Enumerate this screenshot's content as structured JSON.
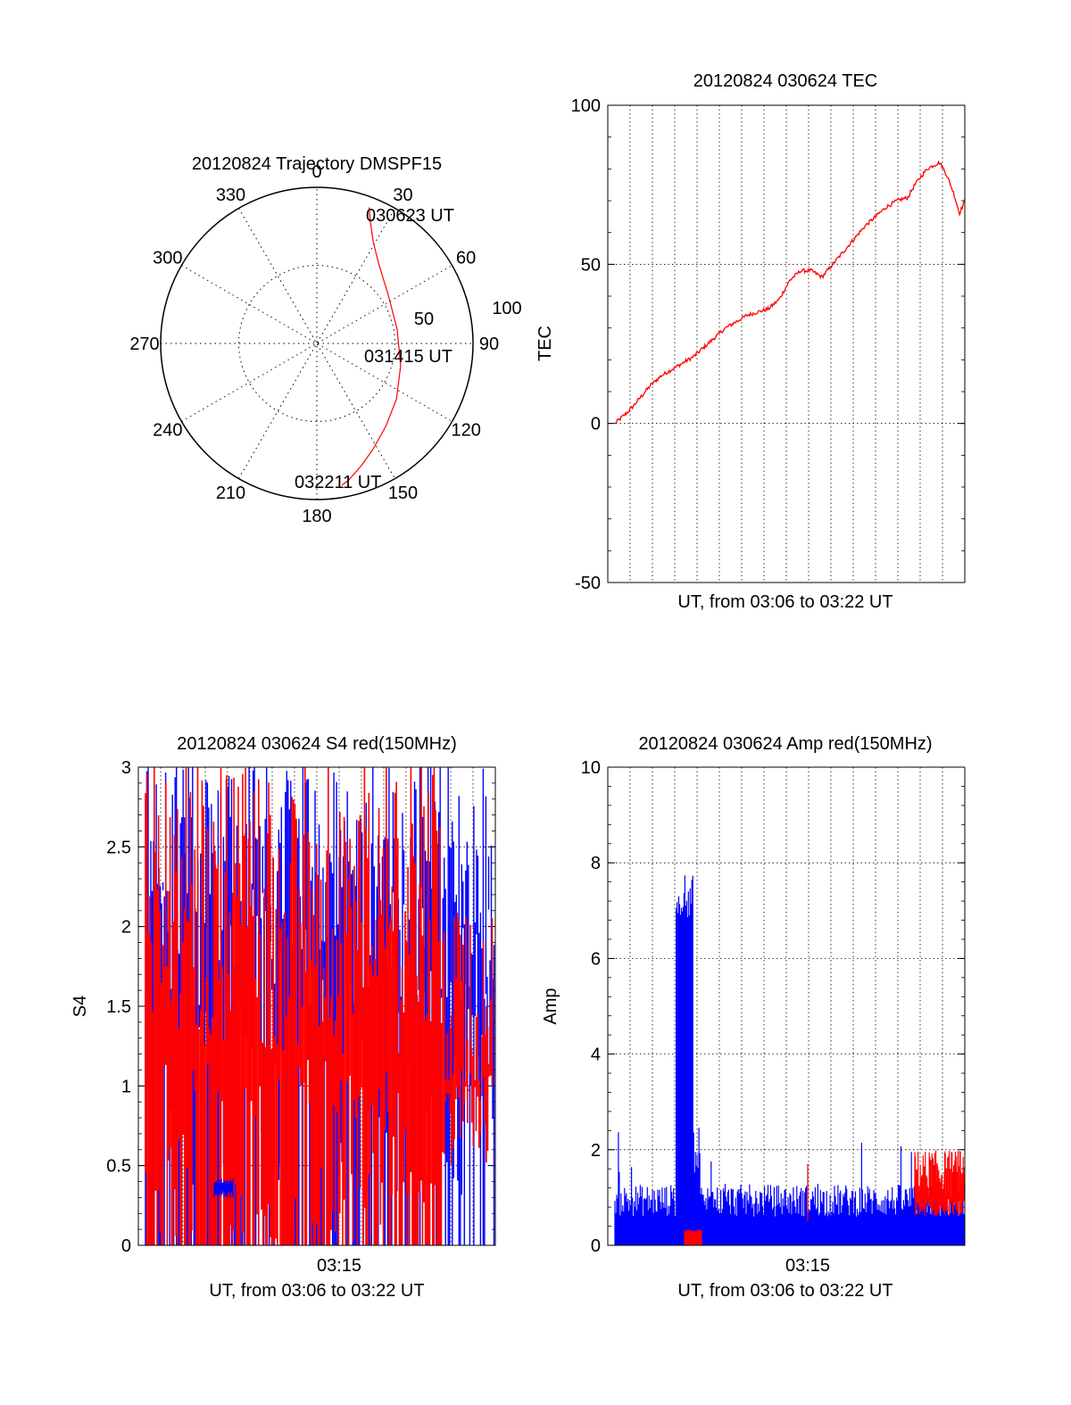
{
  "colors": {
    "red": "#ff0000",
    "blue": "#0000ff",
    "black": "#000000"
  },
  "chart_data": [
    {
      "type": "polar",
      "title": "20120824 Trajectory DMSPF15",
      "azimuth_labels": [
        "0",
        "30",
        "60",
        "90",
        "120",
        "150",
        "180",
        "210",
        "240",
        "270",
        "300",
        "330"
      ],
      "radial_labels": [
        "50",
        "100"
      ],
      "grid": true,
      "point_labels": [
        "030623 UT",
        "031415 UT",
        "032211 UT"
      ],
      "series": [
        {
          "color": "red",
          "points": [
            {
              "az": 21,
              "el": 6
            },
            {
              "az": 24,
              "el": 14
            },
            {
              "az": 29,
              "el": 23
            },
            {
              "az": 38,
              "el": 32
            },
            {
              "az": 55,
              "el": 40
            },
            {
              "az": 80,
              "el": 43
            },
            {
              "az": 105,
              "el": 40
            },
            {
              "az": 125,
              "el": 34
            },
            {
              "az": 140,
              "el": 28
            },
            {
              "az": 152,
              "el": 21
            },
            {
              "az": 160,
              "el": 15
            },
            {
              "az": 167,
              "el": 9
            },
            {
              "az": 170,
              "el": 7
            }
          ]
        }
      ]
    },
    {
      "type": "line",
      "title": "20120824 030624 TEC",
      "xlabel": "UT, from 03:06 to 03:22 UT",
      "ylabel": "TEC",
      "ylim": [
        -50,
        100
      ],
      "yticks": [
        "100",
        "50",
        "0",
        "-50"
      ],
      "grid": true,
      "series": [
        {
          "color": "red",
          "x": [
            0.02,
            0.04,
            0.06,
            0.09,
            0.12,
            0.15,
            0.18,
            0.21,
            0.24,
            0.27,
            0.3,
            0.33,
            0.36,
            0.39,
            0.42,
            0.45,
            0.48,
            0.51,
            0.54,
            0.57,
            0.6,
            0.63,
            0.66,
            0.69,
            0.72,
            0.75,
            0.78,
            0.81,
            0.84,
            0.86,
            0.88,
            0.895,
            0.91,
            0.93,
            0.95,
            0.97,
            0.985,
            1.0
          ],
          "y": [
            0,
            2,
            4,
            8,
            12,
            15,
            17,
            19,
            21,
            24,
            27,
            30,
            32,
            34,
            35,
            36,
            39,
            45,
            48,
            48,
            46,
            50,
            54,
            58,
            62,
            65,
            68,
            70,
            71,
            75,
            78,
            80,
            81,
            82,
            78,
            72,
            66,
            70
          ]
        }
      ]
    },
    {
      "type": "line",
      "title": "20120824 030624 S4 red(150MHz)",
      "xlabel": "UT, from 03:06 to 03:22 UT",
      "ylabel": "S4",
      "ylim": [
        0,
        3
      ],
      "yticks": [
        "3",
        "2.5",
        "2",
        "1.5",
        "1",
        "0.5",
        "0"
      ],
      "xtick_label": "03:15",
      "grid": true,
      "series": [
        {
          "color": "red",
          "name": "red",
          "profile": "dense-spikes"
        },
        {
          "color": "blue",
          "name": "blue",
          "profile": "dense-spikes"
        }
      ]
    },
    {
      "type": "line",
      "title": "20120824 030624 Amp red(150MHz)",
      "xlabel": "UT, from 03:06 to 03:22 UT",
      "ylabel": "Amp",
      "ylim": [
        0,
        10
      ],
      "yticks": [
        "10",
        "8",
        "6",
        "4",
        "2",
        "0"
      ],
      "xtick_label": "03:15",
      "grid": true,
      "series": [
        {
          "color": "blue",
          "name": "blue",
          "baseline": 0.75,
          "burst_range": [
            0.19,
            0.24
          ],
          "burst_level": 7.2
        },
        {
          "color": "red",
          "name": "red",
          "baseline": 0.05,
          "burst_range": [
            0.86,
            1.0
          ],
          "burst_level": 1.5
        }
      ]
    }
  ]
}
